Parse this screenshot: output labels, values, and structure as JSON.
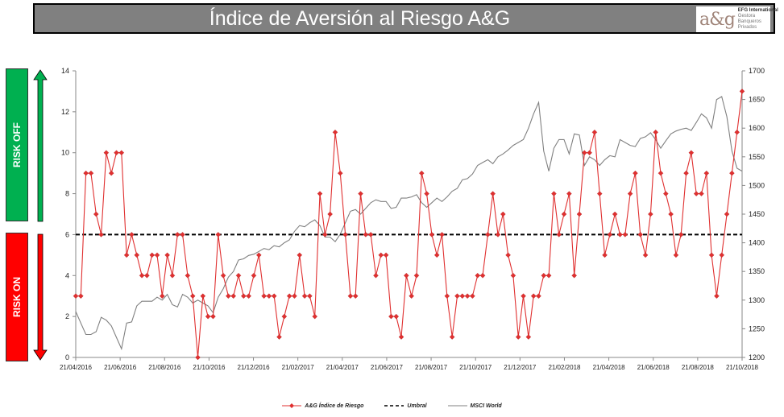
{
  "header": {
    "title": "Índice de Aversión al Riesgo A&G",
    "logo_mark": "a&g",
    "logo_line1": "EFG International",
    "logo_line2": "Gestora",
    "logo_line3": "Banqueros",
    "logo_line4": "Privados"
  },
  "risk": {
    "off_label": "RISK OFF",
    "on_label": "RISK ON",
    "off_color": "#00b050",
    "on_color": "#ff0000"
  },
  "chart_data": {
    "type": "line",
    "x_tick_labels": [
      "21/04/2016",
      "21/06/2016",
      "21/08/2016",
      "21/10/2016",
      "21/12/2016",
      "21/02/2017",
      "21/04/2017",
      "21/06/2017",
      "21/08/2017",
      "21/10/2017",
      "21/12/2017",
      "21/02/2018",
      "21/04/2018",
      "21/06/2018",
      "21/08/2018",
      "21/10/2018"
    ],
    "y_left": {
      "min": 0,
      "max": 14,
      "step": 2
    },
    "y_right": {
      "min": 1200,
      "max": 1700,
      "step": 50
    },
    "threshold": 6,
    "series": [
      {
        "name": "A&G Índice de Riesgo",
        "axis": "left",
        "color": "#e03030",
        "marker": "diamond",
        "values": [
          3,
          3,
          9,
          9,
          7,
          6,
          10,
          9,
          10,
          10,
          5,
          6,
          5,
          4,
          4,
          5,
          5,
          3,
          5,
          4,
          6,
          6,
          4,
          3,
          0,
          3,
          2,
          2,
          6,
          4,
          3,
          3,
          4,
          3,
          3,
          4,
          5,
          3,
          3,
          3,
          1,
          2,
          3,
          3,
          5,
          3,
          3,
          2,
          8,
          6,
          7,
          11,
          9,
          6,
          3,
          3,
          8,
          6,
          6,
          4,
          5,
          5,
          2,
          2,
          1,
          4,
          3,
          4,
          9,
          8,
          6,
          5,
          6,
          3,
          1,
          3,
          3,
          3,
          3,
          4,
          4,
          6,
          8,
          6,
          7,
          5,
          4,
          1,
          3,
          1,
          3,
          3,
          4,
          4,
          8,
          6,
          7,
          8,
          4,
          7,
          10,
          10,
          11,
          8,
          5,
          6,
          7,
          6,
          6,
          8,
          9,
          6,
          5,
          7,
          11,
          9,
          8,
          7,
          5,
          6,
          9,
          10,
          8,
          8,
          9,
          5,
          3,
          5,
          7,
          9,
          11,
          13
        ]
      },
      {
        "name": "Umbral",
        "axis": "left",
        "color": "#000000",
        "style": "dashed"
      },
      {
        "name": "MSCI World",
        "axis": "right",
        "color": "#808080",
        "values": [
          1280,
          1260,
          1240,
          1240,
          1245,
          1270,
          1265,
          1255,
          1235,
          1215,
          1260,
          1262,
          1290,
          1298,
          1298,
          1298,
          1305,
          1300,
          1310,
          1292,
          1288,
          1310,
          1305,
          1295,
          1300,
          1295,
          1290,
          1278,
          1305,
          1320,
          1340,
          1350,
          1370,
          1372,
          1378,
          1380,
          1385,
          1390,
          1388,
          1395,
          1393,
          1400,
          1405,
          1420,
          1430,
          1428,
          1435,
          1440,
          1430,
          1410,
          1410,
          1402,
          1415,
          1435,
          1455,
          1458,
          1450,
          1460,
          1470,
          1475,
          1472,
          1472,
          1460,
          1462,
          1478,
          1478,
          1480,
          1484,
          1470,
          1462,
          1470,
          1478,
          1472,
          1480,
          1490,
          1495,
          1510,
          1512,
          1520,
          1535,
          1540,
          1545,
          1538,
          1550,
          1555,
          1562,
          1570,
          1575,
          1580,
          1600,
          1625,
          1645,
          1560,
          1525,
          1565,
          1580,
          1580,
          1555,
          1590,
          1588,
          1535,
          1550,
          1545,
          1535,
          1545,
          1552,
          1550,
          1580,
          1575,
          1570,
          1568,
          1582,
          1585,
          1592,
          1580,
          1565,
          1578,
          1590,
          1595,
          1598,
          1600,
          1596,
          1610,
          1625,
          1618,
          1600,
          1650,
          1655,
          1620,
          1560,
          1530,
          1525
        ]
      }
    ]
  }
}
